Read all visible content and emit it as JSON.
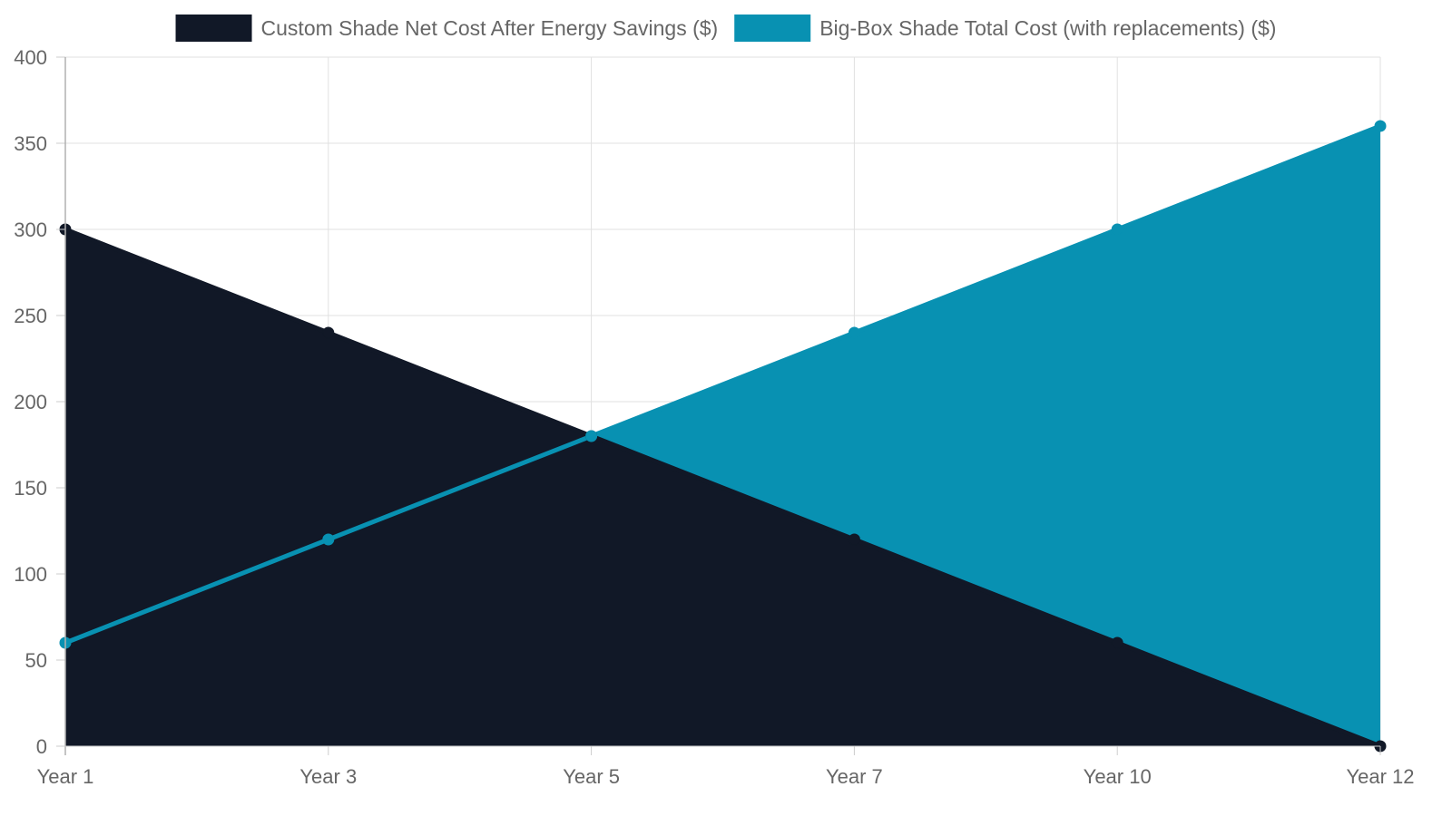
{
  "chart_data": {
    "type": "area",
    "categories": [
      "Year 1",
      "Year 3",
      "Year 5",
      "Year 7",
      "Year 10",
      "Year 12"
    ],
    "series": [
      {
        "name": "Custom Shade Net Cost After Energy Savings ($)",
        "values": [
          300,
          240,
          180,
          120,
          60,
          0
        ],
        "color": "#111827"
      },
      {
        "name": "Big-Box Shade Total Cost (with replacements) ($)",
        "values": [
          60,
          120,
          180,
          240,
          300,
          360
        ],
        "color": "#0891b2"
      }
    ],
    "ylim": [
      0,
      400
    ],
    "yticks": [
      0,
      50,
      100,
      150,
      200,
      250,
      300,
      350,
      400
    ],
    "grid": true,
    "legend_position": "top",
    "title": "",
    "xlabel": "",
    "ylabel": ""
  }
}
